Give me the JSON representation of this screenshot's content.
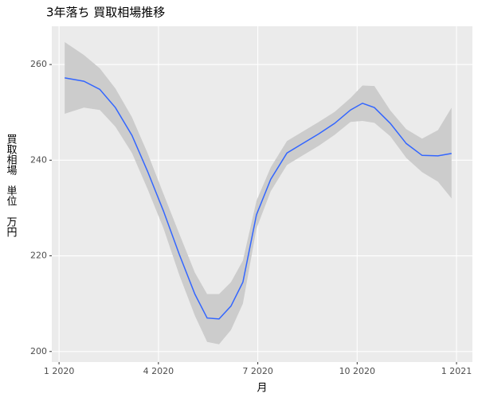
{
  "chart_data": {
    "type": "smooth",
    "title": "3年落ち 買取相場推移",
    "x_label": "月",
    "y_label": "買取相場　単位　万円",
    "x": [
      0.17,
      0.75,
      1.23,
      1.7,
      2.2,
      2.67,
      3.15,
      3.63,
      4.1,
      4.47,
      4.83,
      5.19,
      5.55,
      5.96,
      6.39,
      6.88,
      7.36,
      7.84,
      8.32,
      8.8,
      9.16,
      9.52,
      10.0,
      10.48,
      10.96,
      11.44,
      11.85
    ],
    "series": [
      {
        "color": "#3366ff",
        "values": [
          257.2,
          256.5,
          254.8,
          251,
          245.2,
          237.7,
          229.4,
          220.3,
          212,
          207,
          206.8,
          209.5,
          214.5,
          228.6,
          236,
          241.5,
          243.5,
          245.5,
          247.7,
          250.5,
          251.9,
          251,
          247.7,
          243.5,
          241,
          240.9,
          241.4
        ],
        "lower": [
          249.7,
          251,
          250.5,
          247,
          241.5,
          234,
          225.8,
          216,
          207.5,
          202,
          201.5,
          204.5,
          210,
          225.7,
          233.5,
          239,
          241,
          243,
          245.3,
          248,
          248.2,
          247.8,
          245,
          240.5,
          237.5,
          235.5,
          232
        ],
        "upper": [
          264.7,
          262,
          259.2,
          255,
          249,
          241.5,
          233,
          224.6,
          216.5,
          212,
          212,
          214.5,
          219,
          231.5,
          238.5,
          244,
          246,
          248,
          250.1,
          253,
          255.6,
          255.5,
          250.4,
          246.5,
          244.5,
          246.3,
          251
        ],
        "band_color": "#cccccc"
      }
    ],
    "xlim": [
      -0.22,
      12.48
    ],
    "xticks": [
      {
        "value": 0,
        "label": "1 2020"
      },
      {
        "value": 3,
        "label": "4 2020"
      },
      {
        "value": 6,
        "label": "7 2020"
      },
      {
        "value": 9,
        "label": "10 2020"
      },
      {
        "value": 12,
        "label": "1 2021"
      }
    ],
    "ylim": [
      197.8,
      268
    ],
    "yticks": [
      200,
      220,
      240,
      260
    ],
    "grid": true
  }
}
